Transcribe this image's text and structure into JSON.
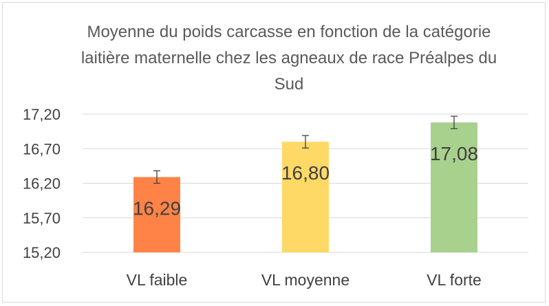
{
  "chart_data": {
    "type": "bar",
    "title": "Moyenne du poids carcasse en fonction de la catégorie laitière maternelle chez les agneaux de race Préalpes du Sud",
    "categories": [
      "VL faible",
      "VL moyenne",
      "VL forte"
    ],
    "values": [
      16.29,
      16.8,
      17.08
    ],
    "data_labels": [
      "16,29",
      "16,80",
      "17,08"
    ],
    "error_bars": [
      0.09,
      0.09,
      0.09
    ],
    "bar_colors": [
      "#ff8347",
      "#ffd966",
      "#a9d18e"
    ],
    "ylim": [
      15.2,
      17.2
    ],
    "y_ticks": [
      15.2,
      15.7,
      16.2,
      16.7,
      17.2
    ],
    "y_tick_labels": [
      "15,20",
      "15,70",
      "16,20",
      "16,70",
      "17,20"
    ],
    "xlabel": "",
    "ylabel": "",
    "grid": true,
    "legend": "none"
  }
}
